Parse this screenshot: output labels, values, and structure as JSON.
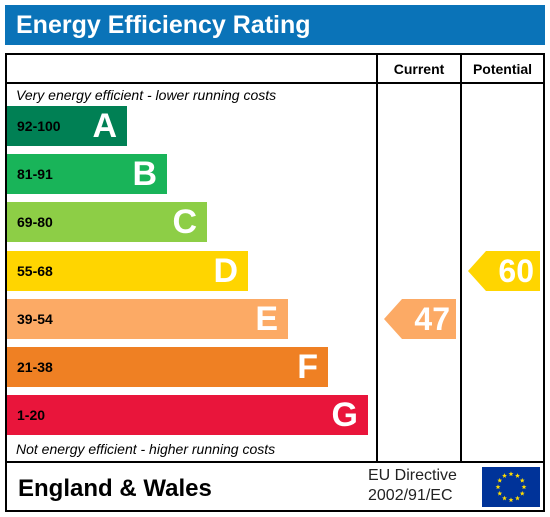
{
  "title": "Energy Efficiency Rating",
  "columns": {
    "current": "Current",
    "potential": "Potential"
  },
  "top_note": "Very energy efficient - lower running costs",
  "bottom_note": "Not energy efficient - higher running costs",
  "footer": {
    "region": "England & Wales",
    "directive_line1": "EU Directive",
    "directive_line2": "2002/91/EC"
  },
  "eu_flag_icon": "eu-flag-icon",
  "chart_data": {
    "type": "bar",
    "categories": [
      "A",
      "B",
      "C",
      "D",
      "E",
      "F",
      "G"
    ],
    "bands": [
      {
        "letter": "A",
        "range": "92-100",
        "color": "#008054",
        "range_color": "#000000"
      },
      {
        "letter": "B",
        "range": "81-91",
        "color": "#19b459",
        "range_color": "#000000"
      },
      {
        "letter": "C",
        "range": "69-80",
        "color": "#8dce46",
        "range_color": "#000000"
      },
      {
        "letter": "D",
        "range": "55-68",
        "color": "#ffd500",
        "range_color": "#000000"
      },
      {
        "letter": "E",
        "range": "39-54",
        "color": "#fcaa65",
        "range_color": "#000000"
      },
      {
        "letter": "F",
        "range": "21-38",
        "color": "#ef8023",
        "range_color": "#000000"
      },
      {
        "letter": "G",
        "range": "1-20",
        "color": "#e9153b",
        "range_color": "#000000"
      }
    ],
    "current": {
      "value": 47,
      "band": "E",
      "color": "#fcaa65"
    },
    "potential": {
      "value": 60,
      "band": "D",
      "color": "#ffd500"
    }
  }
}
